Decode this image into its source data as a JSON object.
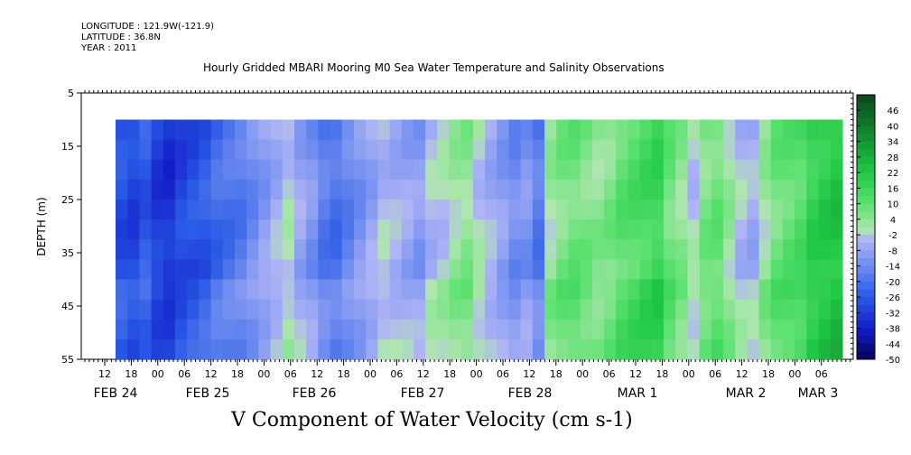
{
  "header": {
    "longitude": "LONGITUDE : 121.9W(-121.9)",
    "latitude": "LATITUDE : 36.8N",
    "year": "YEAR : 2011"
  },
  "chart_data": {
    "type": "heatmap",
    "title": "Hourly Gridded MBARI Mooring M0 Sea Water Temperature and Salinity Observations",
    "xlabel": "V Component of Water Velocity (cm s-1)",
    "ylabel": "DEPTH (m)",
    "ylim": [
      55,
      5
    ],
    "y_ticks": [
      "5",
      "15",
      "25",
      "35",
      "45",
      "55"
    ],
    "x_ticks": [
      "12",
      "18",
      "00",
      "06",
      "12",
      "18",
      "00",
      "06",
      "12",
      "18",
      "00",
      "06",
      "12",
      "18",
      "00",
      "06",
      "12",
      "18",
      "00",
      "06",
      "12",
      "18",
      "00",
      "06",
      "12",
      "18",
      "00",
      "06"
    ],
    "date_labels": [
      "FEB 24",
      "FEB 25",
      "FEB 26",
      "FEB 27",
      "FEB 28",
      "MAR  1",
      "MAR  2",
      "MAR  3"
    ],
    "data_depth_range": [
      10,
      55
    ],
    "colorbar": {
      "levels": [
        "46",
        "40",
        "34",
        "28",
        "22",
        "16",
        "10",
        "4",
        "-2",
        "-8",
        "-14",
        "-20",
        "-26",
        "-32",
        "-38",
        "-44",
        "-50"
      ],
      "min": -50,
      "max": 52
    },
    "time_columns_v": [
      -28,
      -30,
      -26,
      -32,
      -34,
      -30,
      -28,
      -26,
      -22,
      -20,
      -18,
      -14,
      -10,
      -6,
      -2,
      -8,
      -12,
      -18,
      -20,
      -16,
      -12,
      -8,
      -4,
      -6,
      -8,
      -10,
      -4,
      -2,
      2,
      4,
      -2,
      -6,
      -10,
      -14,
      -12,
      -18,
      2,
      6,
      8,
      6,
      4,
      6,
      10,
      12,
      14,
      16,
      8,
      4,
      -2,
      6,
      8,
      2,
      -4,
      -6,
      2,
      8,
      10,
      12,
      18,
      20,
      22
    ]
  }
}
